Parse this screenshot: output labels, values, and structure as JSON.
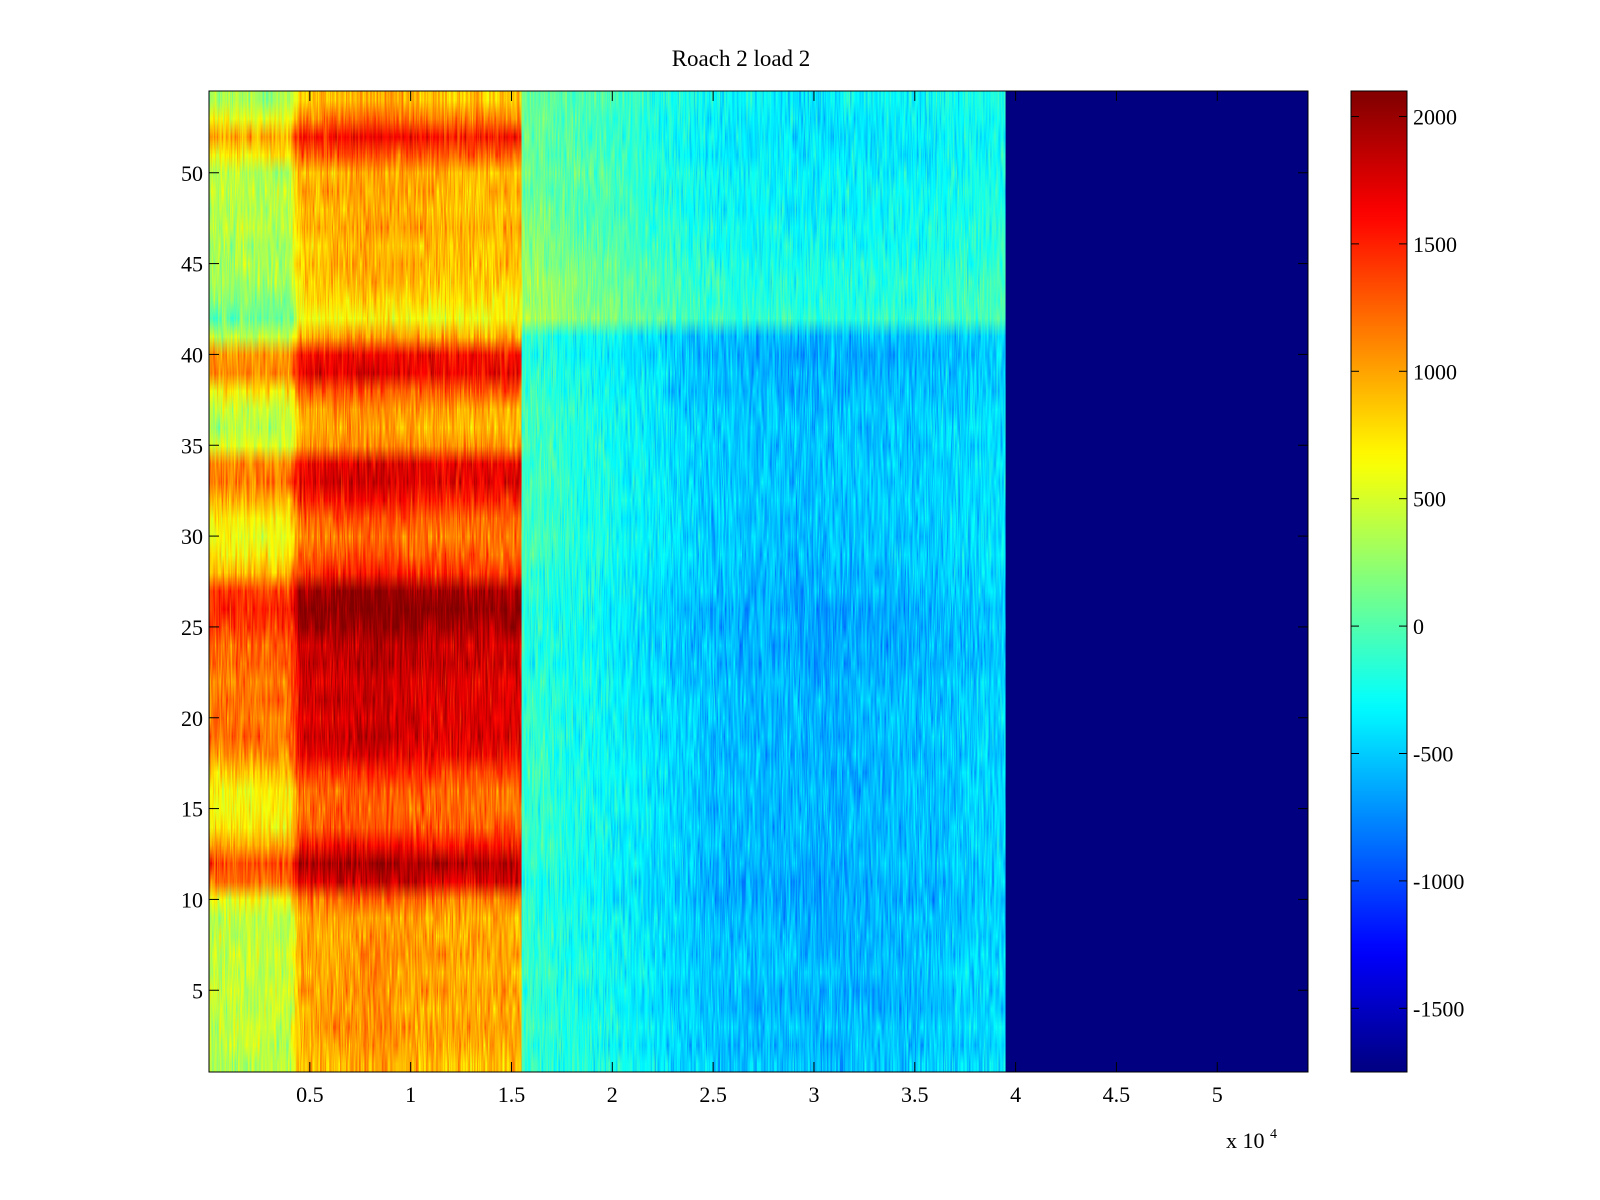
{
  "chart_data": {
    "type": "heatmap",
    "title": "Roach 2 load 2",
    "xlabel": "",
    "ylabel": "",
    "x_range": [
      0,
      54500
    ],
    "y_range": [
      0.5,
      54.5
    ],
    "x_exponent_label": {
      "base": "x 10",
      "exponent": "4"
    },
    "x_ticks": [
      {
        "value": 5000,
        "label": "0.5"
      },
      {
        "value": 10000,
        "label": "1"
      },
      {
        "value": 15000,
        "label": "1.5"
      },
      {
        "value": 20000,
        "label": "2"
      },
      {
        "value": 25000,
        "label": "2.5"
      },
      {
        "value": 30000,
        "label": "3"
      },
      {
        "value": 35000,
        "label": "3.5"
      },
      {
        "value": 40000,
        "label": "4"
      },
      {
        "value": 45000,
        "label": "4.5"
      },
      {
        "value": 50000,
        "label": "5"
      }
    ],
    "y_ticks": [
      {
        "value": 5,
        "label": "5"
      },
      {
        "value": 10,
        "label": "10"
      },
      {
        "value": 15,
        "label": "15"
      },
      {
        "value": 20,
        "label": "20"
      },
      {
        "value": 25,
        "label": "25"
      },
      {
        "value": 30,
        "label": "30"
      },
      {
        "value": 35,
        "label": "35"
      },
      {
        "value": 40,
        "label": "40"
      },
      {
        "value": 45,
        "label": "45"
      },
      {
        "value": 50,
        "label": "50"
      }
    ],
    "colorbar": {
      "colormap": "jet",
      "range": [
        -1750,
        2100
      ],
      "ticks": [
        {
          "value": 2000,
          "label": "2000"
        },
        {
          "value": 1500,
          "label": "1500"
        },
        {
          "value": 1000,
          "label": "1000"
        },
        {
          "value": 500,
          "label": "500"
        },
        {
          "value": 0,
          "label": "0"
        },
        {
          "value": -500,
          "label": "-500"
        },
        {
          "value": -1000,
          "label": "-1000"
        },
        {
          "value": -1500,
          "label": "-1500"
        }
      ]
    },
    "regions": [
      {
        "x_start": 0,
        "x_end": 15500,
        "description": "high values, approx 300 to 2100"
      },
      {
        "x_start": 15500,
        "x_end": 39500,
        "description": "mid values, approx -800 to 400"
      },
      {
        "x_start": 39500,
        "x_end": 54500,
        "description": "constant minimum",
        "value": -1750
      }
    ],
    "row_levels_left_region": [
      650,
      700,
      750,
      700,
      750,
      700,
      750,
      700,
      700,
      900,
      1500,
      1650,
      1300,
      1000,
      950,
      950,
      1150,
      1400,
      1500,
      1450,
      1500,
      1450,
      1550,
      1550,
      1700,
      1800,
      1700,
      1200,
      1000,
      900,
      1000,
      1250,
      1450,
      1400,
      800,
      650,
      750,
      1000,
      1400,
      1350,
      700,
      350,
      500,
      600,
      650,
      600,
      700,
      650,
      700,
      650,
      1000,
      1300,
      900,
      600
    ],
    "row_levels_middle_region": [
      -250,
      -300,
      -250,
      -300,
      -300,
      -250,
      -300,
      -300,
      -300,
      -350,
      -350,
      -300,
      -300,
      -300,
      -300,
      -300,
      -300,
      -300,
      -300,
      -300,
      -300,
      -300,
      -350,
      -350,
      -350,
      -350,
      -300,
      -300,
      -250,
      -250,
      -250,
      -250,
      -250,
      -250,
      -250,
      -250,
      -250,
      -300,
      -300,
      -350,
      -300,
      150,
      100,
      100,
      50,
      0,
      0,
      -50,
      -50,
      -50,
      -100,
      -100,
      -100,
      -50
    ],
    "time_profile_middle_region": [
      {
        "x": 15500,
        "offset": 200
      },
      {
        "x": 20000,
        "offset": 0
      },
      {
        "x": 25000,
        "offset": -250
      },
      {
        "x": 30000,
        "offset": -300
      },
      {
        "x": 35000,
        "offset": -250
      },
      {
        "x": 39500,
        "offset": -150
      }
    ],
    "time_profile_left_region": [
      {
        "x": 0,
        "offset": -300
      },
      {
        "x": 4000,
        "offset": -300
      },
      {
        "x": 4500,
        "offset": 250
      },
      {
        "x": 8000,
        "offset": 350
      },
      {
        "x": 12000,
        "offset": 250
      },
      {
        "x": 15500,
        "offset": 250
      }
    ]
  }
}
